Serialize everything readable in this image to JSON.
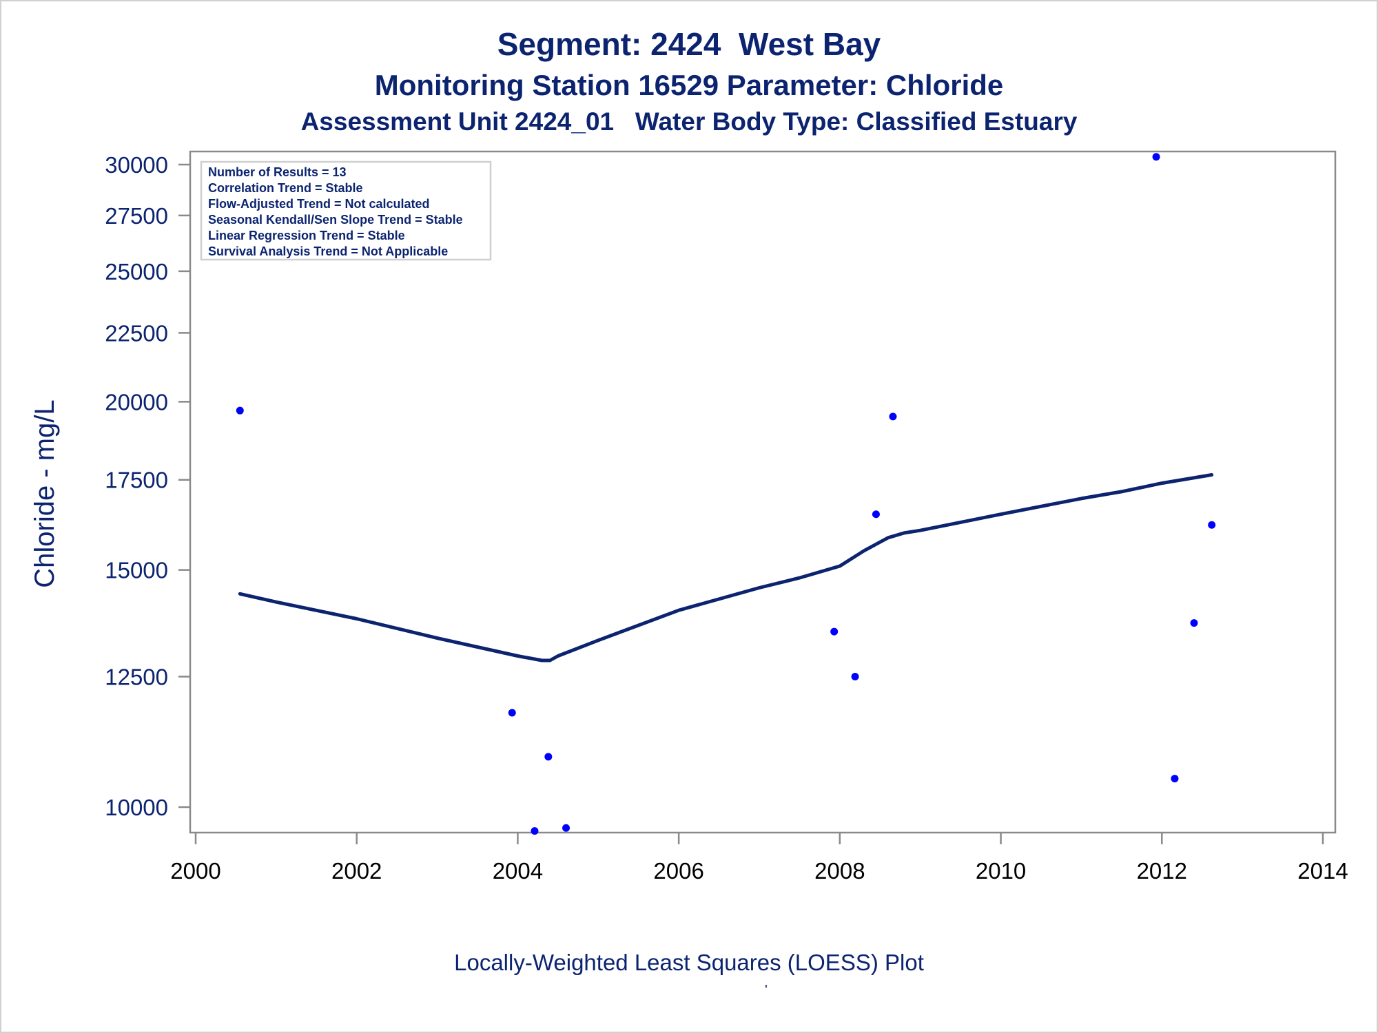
{
  "titles": {
    "line1": "Segment: 2424  West Bay",
    "line2": "Monitoring Station 16529 Parameter: Chloride",
    "line3": "Assessment Unit 2424_01   Water Body Type: Classified Estuary"
  },
  "stats_box": [
    "Number of Results = 13",
    "Correlation Trend = Stable",
    "Flow-Adjusted Trend = Not calculated",
    "Seasonal Kendall/Sen Slope Trend = Stable",
    "Linear Regression Trend = Stable",
    "Survival Analysis Trend = Not Applicable"
  ],
  "footnote": "Locally-Weighted Least Squares (LOESS) Plot",
  "footnote_mark": "'",
  "colors": {
    "text": "#0c2470",
    "points": "#0000ff",
    "loess_line": "#0c2470",
    "axis": "#8a8a8a"
  },
  "chart_data": {
    "type": "scatter",
    "title": "Segment: 2424  West Bay",
    "xlabel": "",
    "ylabel": "Chloride - mg/L",
    "xlim": [
      2000,
      2014
    ],
    "ylim": [
      9500,
      30300
    ],
    "y_scale": "log",
    "grid": false,
    "x_ticks": [
      "2000",
      "2002",
      "2004",
      "2006",
      "2008",
      "2010",
      "2012",
      "2014"
    ],
    "y_ticks": [
      "10000",
      "12500",
      "15000",
      "17500",
      "20000",
      "22500",
      "25000",
      "27500",
      "30000"
    ],
    "series": [
      {
        "type": "scatter",
        "x": [
          2000.55,
          2003.93,
          2004.21,
          2004.38,
          2004.6,
          2007.93,
          2008.19,
          2008.45,
          2008.66,
          2011.93,
          2012.16,
          2012.4,
          2012.62
        ],
        "y": [
          19700,
          11750,
          9600,
          10900,
          9650,
          13500,
          12500,
          16500,
          19500,
          30400,
          10500,
          13700,
          16200
        ]
      },
      {
        "type": "line",
        "x": [
          2000.55,
          2001.0,
          2002.0,
          2003.0,
          2004.0,
          2004.3,
          2004.4,
          2004.5,
          2005.0,
          2006.0,
          2007.0,
          2007.5,
          2008.0,
          2008.3,
          2008.6,
          2008.8,
          2009.0,
          2010.0,
          2011.0,
          2011.5,
          2012.0,
          2012.62
        ],
        "y": [
          14400,
          14200,
          13800,
          13350,
          12950,
          12850,
          12850,
          12950,
          13300,
          14000,
          14550,
          14800,
          15100,
          15500,
          15850,
          15980,
          16050,
          16500,
          16950,
          17150,
          17400,
          17650
        ]
      }
    ]
  }
}
